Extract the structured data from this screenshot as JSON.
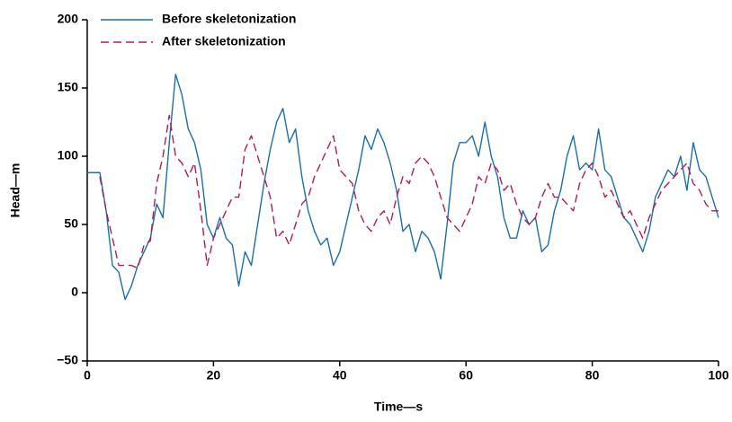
{
  "chart_data": {
    "type": "line",
    "x_label": "Time—s",
    "y_label": "Head—m",
    "x": [
      0,
      1,
      2,
      3,
      4,
      5,
      6,
      7,
      8,
      9,
      10,
      11,
      12,
      13,
      14,
      15,
      16,
      17,
      18,
      19,
      20,
      21,
      22,
      23,
      24,
      25,
      26,
      27,
      28,
      29,
      30,
      31,
      32,
      33,
      34,
      35,
      36,
      37,
      38,
      39,
      40,
      41,
      42,
      43,
      44,
      45,
      46,
      47,
      48,
      49,
      50,
      51,
      52,
      53,
      54,
      55,
      56,
      57,
      58,
      59,
      60,
      61,
      62,
      63,
      64,
      65,
      66,
      67,
      68,
      69,
      70,
      71,
      72,
      73,
      74,
      75,
      76,
      77,
      78,
      79,
      80,
      81,
      82,
      83,
      84,
      85,
      86,
      87,
      88,
      89,
      90,
      91,
      92,
      93,
      94,
      95,
      96,
      97,
      98,
      99,
      100
    ],
    "series": [
      {
        "name": "Before skeletonization",
        "color": "#1a6faf",
        "dash": false,
        "values": [
          88,
          88,
          88,
          60,
          20,
          15,
          -5,
          5,
          20,
          30,
          40,
          65,
          55,
          110,
          160,
          145,
          120,
          110,
          90,
          50,
          40,
          55,
          40,
          35,
          5,
          30,
          20,
          50,
          80,
          105,
          125,
          135,
          110,
          120,
          85,
          60,
          45,
          35,
          40,
          20,
          30,
          50,
          70,
          90,
          115,
          105,
          120,
          110,
          95,
          75,
          45,
          50,
          30,
          45,
          40,
          30,
          10,
          50,
          95,
          110,
          110,
          115,
          100,
          125,
          100,
          85,
          55,
          40,
          40,
          60,
          50,
          55,
          30,
          35,
          60,
          75,
          100,
          115,
          90,
          95,
          90,
          120,
          90,
          85,
          70,
          55,
          50,
          40,
          30,
          45,
          70,
          80,
          90,
          85,
          100,
          75,
          110,
          90,
          85,
          70,
          55
        ]
      },
      {
        "name": "After skeletonization",
        "color": "#b01c5a",
        "dash": true,
        "values": [
          null,
          null,
          85,
          60,
          40,
          20,
          20,
          20,
          18,
          35,
          38,
          80,
          100,
          130,
          100,
          95,
          85,
          95,
          60,
          20,
          40,
          50,
          60,
          70,
          70,
          105,
          115,
          100,
          85,
          70,
          40,
          45,
          35,
          50,
          65,
          70,
          85,
          95,
          105,
          115,
          90,
          85,
          80,
          60,
          50,
          45,
          55,
          60,
          50,
          70,
          85,
          80,
          95,
          100,
          95,
          85,
          70,
          55,
          50,
          45,
          55,
          65,
          85,
          80,
          95,
          90,
          75,
          80,
          65,
          55,
          50,
          55,
          70,
          80,
          70,
          70,
          65,
          60,
          80,
          90,
          95,
          85,
          70,
          75,
          65,
          55,
          60,
          50,
          40,
          55,
          65,
          75,
          80,
          85,
          90,
          95,
          80,
          75,
          65,
          60,
          60
        ]
      }
    ],
    "xlim": [
      0,
      100
    ],
    "xticks": [
      0,
      20,
      40,
      60,
      80,
      100
    ],
    "ylim": [
      -50,
      200
    ],
    "yticks": [
      {
        "value": -50,
        "label": "−50"
      },
      0,
      50,
      100,
      150,
      200
    ],
    "legend": "upper-left"
  }
}
